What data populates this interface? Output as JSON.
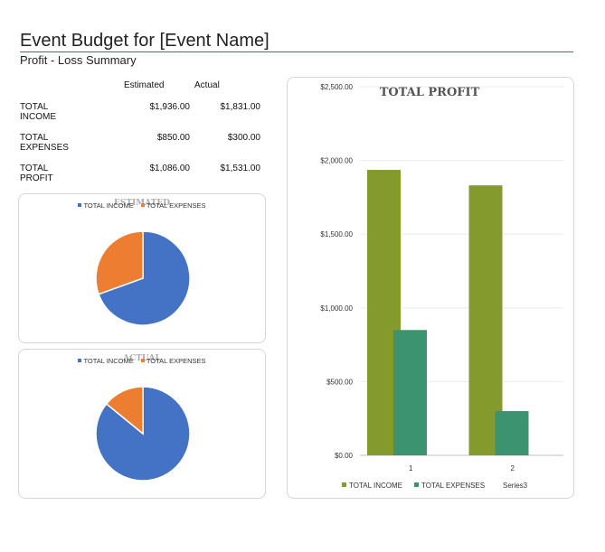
{
  "header": {
    "title": "Event Budget for [Event Name]",
    "subtitle": "Profit - Loss Summary"
  },
  "summary": {
    "col_estimated": "Estimated",
    "col_actual": "Actual",
    "rows": [
      {
        "label": "TOTAL INCOME",
        "estimated": "$1,936.00",
        "actual": "$1,831.00"
      },
      {
        "label": "TOTAL EXPENSES",
        "estimated": "$850.00",
        "actual": "$300.00"
      },
      {
        "label": "TOTAL PROFIT",
        "estimated": "$1,086.00",
        "actual": "$1,531.00"
      }
    ]
  },
  "colors": {
    "income_pie": "#4472C4",
    "expenses_pie": "#ED7D31",
    "income_bar": "#849A2D",
    "expenses_bar": "#3C9370"
  },
  "chart_data": [
    {
      "type": "pie",
      "title": "ESTIMATED",
      "legend": [
        "TOTAL INCOME",
        "TOTAL EXPENSES"
      ],
      "slices": [
        {
          "name": "TOTAL INCOME",
          "value": 1936
        },
        {
          "name": "TOTAL EXPENSES",
          "value": 850
        }
      ]
    },
    {
      "type": "pie",
      "title": "ACTUAL",
      "legend": [
        "TOTAL INCOME",
        "TOTAL EXPENSES"
      ],
      "slices": [
        {
          "name": "TOTAL INCOME",
          "value": 1831
        },
        {
          "name": "TOTAL EXPENSES",
          "value": 300
        }
      ]
    },
    {
      "type": "bar",
      "title": "TOTAL PROFIT",
      "categories": [
        "1",
        "2"
      ],
      "series": [
        {
          "name": "TOTAL INCOME",
          "values": [
            1936,
            1831
          ]
        },
        {
          "name": "TOTAL EXPENSES",
          "values": [
            850,
            300
          ]
        },
        {
          "name": "Series3",
          "values": [
            null,
            null
          ]
        }
      ],
      "ylim": [
        0,
        2500
      ],
      "yticks": [
        "$0.00",
        "$500.00",
        "$1,000.00",
        "$1,500.00",
        "$2,000.00",
        "$2,500.00"
      ],
      "ytick_values": [
        0,
        500,
        1000,
        1500,
        2000,
        2500
      ],
      "grid": true,
      "legend_position": "bottom"
    }
  ]
}
